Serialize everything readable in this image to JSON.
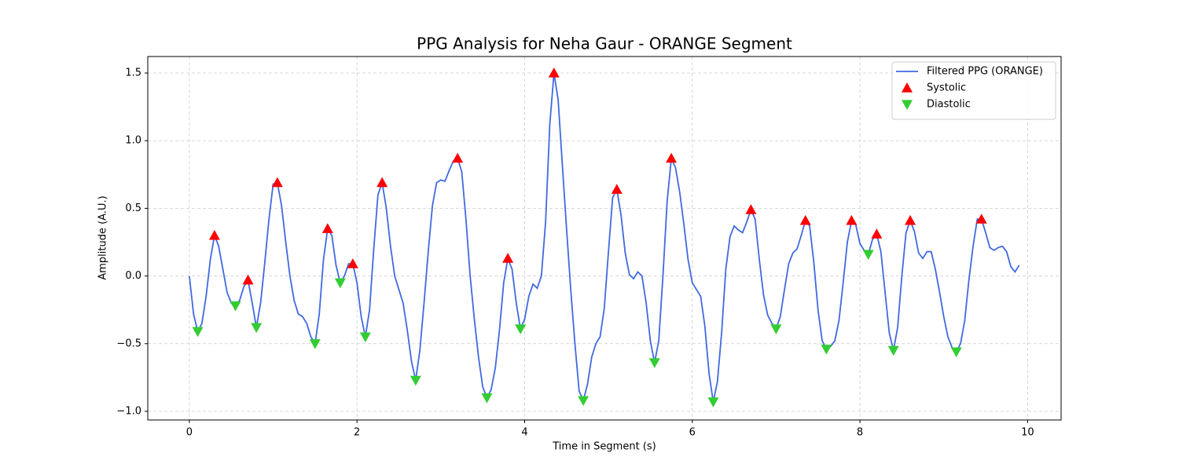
{
  "chart_data": {
    "type": "line",
    "title": "PPG Analysis for Neha Gaur - ORANGE Segment",
    "x_label": "Time in Segment (s)",
    "y_label": "Amplitude (A.U.)",
    "xlim": [
      -0.496,
      10.4
    ],
    "ylim": [
      -1.064,
      1.622
    ],
    "xticks": [
      0,
      2,
      4,
      6,
      8,
      10
    ],
    "yticks": [
      {
        "value": -1.0,
        "label": "−1.0"
      },
      {
        "value": -0.5,
        "label": "−0.5"
      },
      {
        "value": 0.0,
        "label": "0.0"
      },
      {
        "value": 0.5,
        "label": "0.5"
      },
      {
        "value": 1.0,
        "label": "1.0"
      },
      {
        "value": 1.5,
        "label": "1.5"
      }
    ],
    "grid": true,
    "legend": "upper right",
    "series": [
      {
        "name": "Filtered PPG (ORANGE)",
        "kind": "line",
        "color": "#4169e1",
        "x": [
          0,
          0.05,
          0.1,
          0.15,
          0.2,
          0.25,
          0.3,
          0.35,
          0.4,
          0.45,
          0.5,
          0.55,
          0.6,
          0.65,
          0.7,
          0.75,
          0.8,
          0.85,
          0.9,
          0.95,
          1,
          1.05,
          1.1,
          1.15,
          1.2,
          1.25,
          1.3,
          1.35,
          1.4,
          1.45,
          1.5,
          1.55,
          1.6,
          1.65,
          1.7,
          1.75,
          1.8,
          1.85,
          1.9,
          1.95,
          2,
          2.05,
          2.1,
          2.15,
          2.2,
          2.25,
          2.3,
          2.35,
          2.4,
          2.45,
          2.5,
          2.55,
          2.6,
          2.65,
          2.7,
          2.75,
          2.8,
          2.85,
          2.9,
          2.95,
          3,
          3.05,
          3.1,
          3.15,
          3.2,
          3.25,
          3.3,
          3.35,
          3.4,
          3.45,
          3.5,
          3.55,
          3.6,
          3.65,
          3.7,
          3.75,
          3.8,
          3.85,
          3.9,
          3.95,
          4,
          4.05,
          4.1,
          4.15,
          4.2,
          4.25,
          4.3,
          4.35,
          4.4,
          4.45,
          4.5,
          4.55,
          4.6,
          4.65,
          4.7,
          4.75,
          4.8,
          4.85,
          4.9,
          4.95,
          5,
          5.05,
          5.1,
          5.15,
          5.2,
          5.25,
          5.3,
          5.35,
          5.4,
          5.45,
          5.5,
          5.55,
          5.6,
          5.65,
          5.7,
          5.75,
          5.8,
          5.85,
          5.9,
          5.95,
          6,
          6.05,
          6.1,
          6.15,
          6.2,
          6.25,
          6.3,
          6.35,
          6.4,
          6.45,
          6.5,
          6.55,
          6.6,
          6.65,
          6.7,
          6.75,
          6.8,
          6.85,
          6.9,
          6.95,
          7,
          7.05,
          7.1,
          7.15,
          7.2,
          7.25,
          7.3,
          7.35,
          7.4,
          7.45,
          7.5,
          7.55,
          7.6,
          7.65,
          7.7,
          7.75,
          7.8,
          7.85,
          7.9,
          7.95,
          8,
          8.05,
          8.1,
          8.15,
          8.2,
          8.25,
          8.3,
          8.35,
          8.4,
          8.45,
          8.5,
          8.55,
          8.6,
          8.65,
          8.7,
          8.75,
          8.8,
          8.85,
          8.9,
          8.95,
          9,
          9.05,
          9.1,
          9.15,
          9.2,
          9.25,
          9.3,
          9.35,
          9.4,
          9.45,
          9.5,
          9.55,
          9.6,
          9.65,
          9.7,
          9.75,
          9.8,
          9.85,
          9.9
        ],
        "values": [
          0,
          -0.28,
          -0.41,
          -0.35,
          -0.15,
          0.12,
          0.3,
          0.22,
          0.05,
          -0.12,
          -0.2,
          -0.22,
          -0.18,
          -0.08,
          -0.03,
          -0.2,
          -0.38,
          -0.2,
          0.1,
          0.42,
          0.68,
          0.69,
          0.52,
          0.25,
          0,
          -0.18,
          -0.28,
          -0.3,
          -0.35,
          -0.45,
          -0.5,
          -0.28,
          0.12,
          0.35,
          0.3,
          0.08,
          -0.05,
          0,
          0.09,
          0.09,
          -0.05,
          -0.3,
          -0.45,
          -0.25,
          0.2,
          0.6,
          0.69,
          0.5,
          0.22,
          0,
          -0.1,
          -0.2,
          -0.4,
          -0.63,
          -0.77,
          -0.55,
          -0.2,
          0.18,
          0.52,
          0.69,
          0.71,
          0.7,
          0.78,
          0.85,
          0.87,
          0.77,
          0.42,
          0,
          -0.32,
          -0.6,
          -0.82,
          -0.9,
          -0.84,
          -0.68,
          -0.4,
          -0.05,
          0.13,
          0.05,
          -0.2,
          -0.39,
          -0.32,
          -0.15,
          -0.06,
          -0.09,
          0,
          0.4,
          1.12,
          1.5,
          1.3,
          0.82,
          0.35,
          -0.1,
          -0.5,
          -0.85,
          -0.92,
          -0.8,
          -0.6,
          -0.5,
          -0.45,
          -0.24,
          0.18,
          0.58,
          0.64,
          0.45,
          0.17,
          0.01,
          -0.02,
          0.03,
          0,
          -0.2,
          -0.48,
          -0.64,
          -0.48,
          0,
          0.55,
          0.87,
          0.8,
          0.62,
          0.38,
          0.12,
          -0.05,
          -0.1,
          -0.15,
          -0.37,
          -0.72,
          -0.93,
          -0.78,
          -0.42,
          0.05,
          0.29,
          0.37,
          0.34,
          0.32,
          0.4,
          0.49,
          0.42,
          0.12,
          -0.14,
          -0.29,
          -0.35,
          -0.39,
          -0.3,
          -0.1,
          0.09,
          0.17,
          0.2,
          0.3,
          0.41,
          0.37,
          0.1,
          -0.25,
          -0.48,
          -0.54,
          -0.52,
          -0.48,
          -0.33,
          -0.05,
          0.25,
          0.41,
          0.38,
          0.24,
          0.19,
          0.16,
          0.27,
          0.31,
          0.18,
          -0.12,
          -0.42,
          -0.55,
          -0.38,
          0,
          0.32,
          0.41,
          0.33,
          0.17,
          0.13,
          0.18,
          0.18,
          0.05,
          -0.12,
          -0.3,
          -0.45,
          -0.53,
          -0.56,
          -0.5,
          -0.33,
          -0.03,
          0.22,
          0.42,
          0.42,
          0.32,
          0.21,
          0.19,
          0.21,
          0.22,
          0.18,
          0.07,
          0.03,
          0.08
        ]
      },
      {
        "name": "Systolic",
        "kind": "scatter",
        "marker": "triangle-up",
        "color": "#ff0000",
        "x": [
          0.3,
          0.7,
          1.05,
          1.65,
          1.95,
          2.3,
          3.2,
          3.8,
          4.35,
          5.1,
          5.75,
          6.7,
          7.35,
          7.9,
          8.2,
          8.6,
          9.45
        ],
        "values": [
          0.3,
          -0.03,
          0.69,
          0.35,
          0.09,
          0.69,
          0.87,
          0.13,
          1.5,
          0.64,
          0.87,
          0.49,
          0.41,
          0.41,
          0.31,
          0.41,
          0.42
        ]
      },
      {
        "name": "Diastolic",
        "kind": "scatter",
        "marker": "triangle-down",
        "color": "#32cd32",
        "x": [
          0.1,
          0.55,
          0.8,
          1.5,
          1.8,
          2.1,
          2.7,
          3.55,
          3.95,
          4.7,
          5.55,
          6.25,
          7.0,
          7.6,
          8.1,
          8.4,
          9.15
        ],
        "values": [
          -0.41,
          -0.22,
          -0.38,
          -0.5,
          -0.05,
          -0.45,
          -0.77,
          -0.9,
          -0.39,
          -0.92,
          -0.64,
          -0.93,
          -0.39,
          -0.54,
          0.16,
          -0.55,
          -0.56
        ]
      }
    ]
  }
}
